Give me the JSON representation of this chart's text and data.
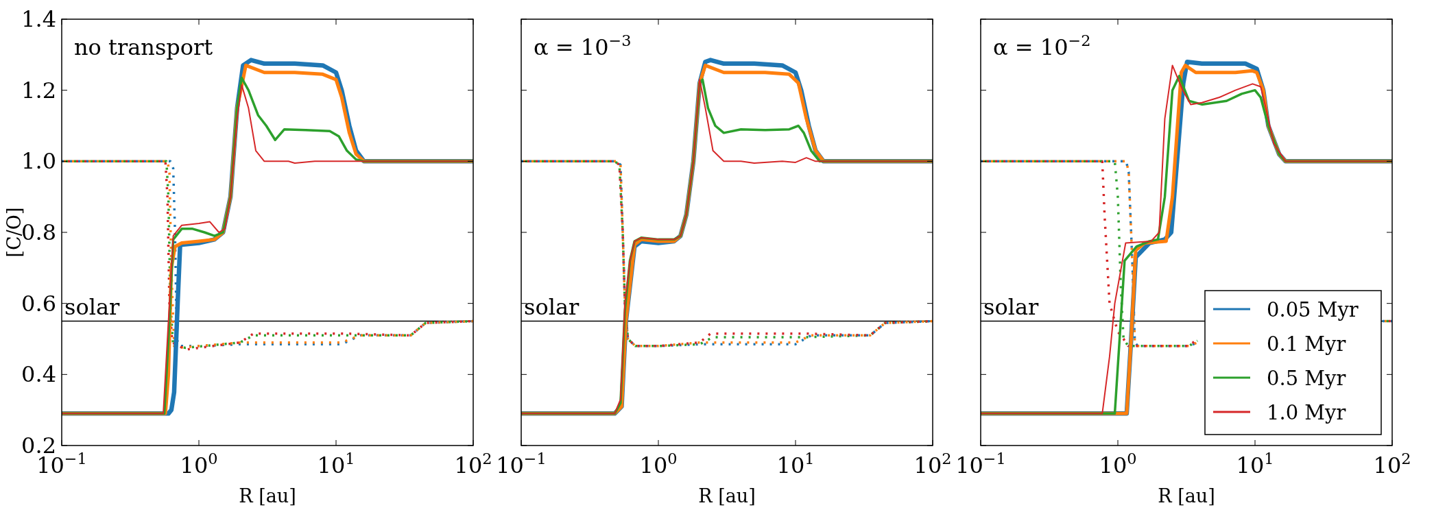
{
  "chart_data": [
    {
      "type": "line",
      "ylabel": "[C/O]",
      "xlabel": "R [au]",
      "annotations": [
        "no transport"
      ],
      "log": "x",
      "xlim": [
        0.1,
        100
      ],
      "ylim": [
        0.2,
        1.4
      ],
      "xticks": [
        {
          "value": 0.1,
          "label": "10$^{−1}$"
        },
        {
          "value": 1,
          "label": "10$^{0}$"
        },
        {
          "value": 10,
          "label": "10$^{1}$"
        },
        {
          "value": 100,
          "label": "10$^{2}$"
        }
      ],
      "yticks": [
        0.2,
        0.4,
        0.6,
        0.8,
        {
          "value": 1,
          "label": "1.0"
        },
        1.2,
        1.4
      ],
      "ref_lines": [
        {
          "axis": "y",
          "value": 0.55,
          "label": "solar",
          "color": "#000000"
        }
      ],
      "series": [
        {
          "color": "#1f77b4",
          "x": [
            0.1,
            0.62,
            0.65,
            0.67,
            0.69,
            0.72,
            1,
            2,
            5,
            11,
            15,
            35,
            45,
            100
          ],
          "values": [
            1.0,
            1.0,
            0.98,
            0.8,
            0.5,
            0.48,
            0.48,
            0.485,
            0.485,
            0.485,
            0.51,
            0.51,
            0.545,
            0.55
          ],
          "line_style": "dotted"
        },
        {
          "color": "#ff7f0e",
          "x": [
            0.1,
            0.59,
            0.61,
            0.63,
            0.66,
            0.7,
            1,
            2,
            5,
            11,
            15,
            35,
            45,
            100
          ],
          "values": [
            1.0,
            1.0,
            0.97,
            0.7,
            0.48,
            0.475,
            0.48,
            0.49,
            0.49,
            0.49,
            0.51,
            0.51,
            0.545,
            0.55
          ],
          "line_style": "dotted"
        },
        {
          "color": "#2ca02c",
          "x": [
            0.1,
            0.58,
            0.6,
            0.62,
            0.65,
            0.8,
            2,
            2.5,
            5,
            15,
            35,
            45,
            100
          ],
          "values": [
            1.0,
            1.0,
            0.9,
            0.6,
            0.48,
            0.475,
            0.49,
            0.51,
            0.51,
            0.51,
            0.51,
            0.545,
            0.55
          ],
          "line_style": "dotted"
        },
        {
          "color": "#d62728",
          "x": [
            0.1,
            0.57,
            0.59,
            0.61,
            0.64,
            0.8,
            2,
            2.5,
            5,
            12,
            35,
            45,
            100
          ],
          "values": [
            1.0,
            1.0,
            0.9,
            0.6,
            0.49,
            0.47,
            0.49,
            0.515,
            0.515,
            0.515,
            0.51,
            0.545,
            0.55
          ],
          "line_style": "dotted"
        },
        {
          "color": "#1f77b4",
          "x": [
            0.1,
            0.6,
            0.63,
            0.66,
            0.7,
            0.73,
            1,
            1.3,
            1.5,
            1.7,
            1.9,
            2.1,
            2.4,
            3,
            5,
            8,
            10,
            11,
            12.5,
            14,
            16,
            100
          ],
          "values": [
            0.29,
            0.29,
            0.3,
            0.35,
            0.6,
            0.765,
            0.77,
            0.78,
            0.8,
            0.9,
            1.15,
            1.27,
            1.285,
            1.275,
            1.275,
            1.27,
            1.25,
            1.2,
            1.1,
            1.03,
            1.0,
            1.0
          ]
        },
        {
          "color": "#ff7f0e",
          "x": [
            0.1,
            0.57,
            0.6,
            0.63,
            0.67,
            0.75,
            1,
            1.3,
            1.5,
            1.7,
            1.9,
            2.2,
            3,
            5,
            8,
            10,
            11,
            12.5,
            14,
            16,
            100
          ],
          "values": [
            0.29,
            0.29,
            0.4,
            0.7,
            0.76,
            0.77,
            0.775,
            0.78,
            0.8,
            0.9,
            1.15,
            1.27,
            1.25,
            1.25,
            1.245,
            1.23,
            1.18,
            1.08,
            1.02,
            1.0,
            1.0
          ]
        },
        {
          "color": "#2ca02c",
          "x": [
            0.1,
            0.56,
            0.6,
            0.65,
            0.75,
            0.9,
            1.1,
            1.3,
            1.5,
            1.7,
            1.9,
            2.05,
            2.3,
            2.7,
            3.1,
            3.6,
            4.2,
            6,
            9,
            10.5,
            12,
            14,
            16,
            100
          ],
          "values": [
            0.29,
            0.29,
            0.5,
            0.78,
            0.81,
            0.81,
            0.8,
            0.79,
            0.8,
            0.9,
            1.15,
            1.235,
            1.2,
            1.13,
            1.1,
            1.06,
            1.09,
            1.088,
            1.085,
            1.07,
            1.03,
            1.005,
            1.0,
            1.0
          ]
        },
        {
          "color": "#d62728",
          "x": [
            0.1,
            0.55,
            0.6,
            0.65,
            0.75,
            1,
            1.2,
            1.4,
            1.55,
            1.7,
            1.9,
            2.05,
            2.3,
            2.6,
            3,
            4.5,
            5,
            7,
            12,
            100
          ],
          "values": [
            0.29,
            0.29,
            0.55,
            0.79,
            0.82,
            0.825,
            0.83,
            0.8,
            0.81,
            0.9,
            1.12,
            1.215,
            1.15,
            1.03,
            1.0,
            1.0,
            0.995,
            1.0,
            1.0,
            1.0
          ]
        }
      ]
    },
    {
      "type": "line",
      "xlabel": "R [au]",
      "annotations": [
        "α = 10$^{−3}$"
      ],
      "log": "x",
      "xlim": [
        0.1,
        100
      ],
      "ylim": [
        0.2,
        1.4
      ],
      "tick_labels": "x",
      "xticks": [
        {
          "value": 0.1,
          "label": "10$^{−1}$"
        },
        {
          "value": 1,
          "label": "10$^{0}$"
        },
        {
          "value": 10,
          "label": "10$^{1}$"
        },
        {
          "value": 100,
          "label": "10$^{2}$"
        }
      ],
      "yticks": [
        0.2,
        0.4,
        0.6,
        0.8,
        1,
        1.2,
        1.4
      ],
      "ref_lines": [
        {
          "axis": "y",
          "value": 0.55,
          "label": "solar",
          "color": "#000000"
        }
      ],
      "series": [
        {
          "color": "#1f77b4",
          "x": [
            0.1,
            0.49,
            0.53,
            0.55,
            0.57,
            0.6,
            0.68,
            1,
            2,
            10,
            13,
            35,
            45,
            100
          ],
          "values": [
            1.0,
            1.0,
            0.99,
            0.8,
            0.6,
            0.5,
            0.48,
            0.48,
            0.485,
            0.485,
            0.51,
            0.51,
            0.545,
            0.55
          ],
          "line_style": "dotted"
        },
        {
          "color": "#ff7f0e",
          "x": [
            0.1,
            0.49,
            0.53,
            0.55,
            0.57,
            0.6,
            0.68,
            1,
            2,
            10,
            13,
            35,
            45,
            100
          ],
          "values": [
            1.0,
            1.0,
            0.99,
            0.8,
            0.6,
            0.5,
            0.48,
            0.48,
            0.49,
            0.49,
            0.51,
            0.51,
            0.545,
            0.55
          ],
          "line_style": "dotted"
        },
        {
          "color": "#2ca02c",
          "x": [
            0.1,
            0.48,
            0.52,
            0.55,
            0.57,
            0.6,
            0.68,
            1,
            2,
            2.5,
            12,
            35,
            45,
            100
          ],
          "values": [
            1.0,
            1.0,
            0.99,
            0.8,
            0.6,
            0.5,
            0.48,
            0.48,
            0.485,
            0.505,
            0.505,
            0.51,
            0.545,
            0.55
          ],
          "line_style": "dotted"
        },
        {
          "color": "#d62728",
          "x": [
            0.1,
            0.48,
            0.52,
            0.55,
            0.57,
            0.6,
            0.68,
            1,
            2,
            2.4,
            12,
            35,
            45,
            100
          ],
          "values": [
            1.0,
            1.0,
            0.99,
            0.8,
            0.6,
            0.5,
            0.48,
            0.48,
            0.49,
            0.515,
            0.515,
            0.51,
            0.545,
            0.55
          ],
          "line_style": "dotted"
        },
        {
          "color": "#1f77b4",
          "x": [
            0.1,
            0.48,
            0.54,
            0.58,
            0.67,
            0.75,
            1,
            1.3,
            1.45,
            1.6,
            1.8,
            2,
            2.2,
            2.4,
            3,
            5,
            8,
            10,
            11,
            12.5,
            14,
            16,
            100
          ],
          "values": [
            0.29,
            0.29,
            0.31,
            0.55,
            0.76,
            0.775,
            0.77,
            0.775,
            0.79,
            0.85,
            1.0,
            1.22,
            1.28,
            1.285,
            1.275,
            1.275,
            1.27,
            1.25,
            1.2,
            1.1,
            1.03,
            1.0,
            1.0
          ]
        },
        {
          "color": "#ff7f0e",
          "x": [
            0.1,
            0.48,
            0.54,
            0.58,
            0.67,
            0.75,
            1,
            1.3,
            1.45,
            1.6,
            1.8,
            2,
            2.2,
            3,
            6,
            9,
            10.5,
            12,
            14,
            16,
            100
          ],
          "values": [
            0.29,
            0.29,
            0.31,
            0.55,
            0.765,
            0.78,
            0.775,
            0.775,
            0.79,
            0.85,
            1.0,
            1.22,
            1.27,
            1.25,
            1.25,
            1.245,
            1.22,
            1.12,
            1.03,
            1.0,
            1.0
          ]
        },
        {
          "color": "#2ca02c",
          "x": [
            0.1,
            0.48,
            0.53,
            0.57,
            0.62,
            0.67,
            0.75,
            1,
            1.3,
            1.45,
            1.6,
            1.8,
            2,
            2.1,
            2.3,
            2.6,
            3,
            4,
            6,
            9,
            10.5,
            11.5,
            13,
            15,
            100
          ],
          "values": [
            0.29,
            0.29,
            0.32,
            0.58,
            0.72,
            0.775,
            0.785,
            0.78,
            0.78,
            0.79,
            0.85,
            1.0,
            1.22,
            1.23,
            1.15,
            1.1,
            1.08,
            1.09,
            1.088,
            1.09,
            1.1,
            1.08,
            1.03,
            1.0,
            1.0
          ]
        },
        {
          "color": "#d62728",
          "x": [
            0.1,
            0.48,
            0.53,
            0.57,
            0.62,
            0.67,
            0.75,
            1,
            1.3,
            1.45,
            1.6,
            1.8,
            2,
            2.2,
            2.5,
            3,
            4,
            5,
            8,
            10,
            12,
            14,
            100
          ],
          "values": [
            0.29,
            0.29,
            0.33,
            0.6,
            0.72,
            0.775,
            0.785,
            0.78,
            0.78,
            0.79,
            0.85,
            1.0,
            1.23,
            1.15,
            1.03,
            1.0,
            1.0,
            0.995,
            1.0,
            0.997,
            1.01,
            1.0,
            1.0
          ]
        }
      ]
    },
    {
      "type": "line",
      "xlabel": "R [au]",
      "annotations": [
        "α = 10$^{−2}$"
      ],
      "log": "x",
      "xlim": [
        0.1,
        100
      ],
      "ylim": [
        0.2,
        1.4
      ],
      "tick_labels": "x",
      "legend": "bottom right",
      "xticks": [
        {
          "value": 0.1,
          "label": "10$^{−1}$"
        },
        {
          "value": 1,
          "label": "10$^{0}$"
        },
        {
          "value": 10,
          "label": "10$^{1}$"
        },
        {
          "value": 100,
          "label": "10$^{2}$"
        }
      ],
      "yticks": [
        0.2,
        0.4,
        0.6,
        0.8,
        1,
        1.2,
        1.4
      ],
      "ref_lines": [
        {
          "axis": "y",
          "value": 0.55,
          "label": "solar",
          "color": "#000000"
        }
      ],
      "series": [
        {
          "color": "#1f77b4",
          "x": [
            0.1,
            1.15,
            1.2,
            1.28,
            1.33,
            1.4,
            2,
            3.3,
            3.8,
            4,
            85,
            100
          ],
          "values": [
            1.0,
            1.0,
            0.97,
            0.7,
            0.49,
            0.48,
            0.48,
            0.48,
            0.49,
            null,
            0.55,
            0.55
          ],
          "line_style": "dotted"
        },
        {
          "color": "#ff7f0e",
          "x": [
            0.1,
            1.15,
            1.2,
            1.28,
            1.33,
            1.4,
            2,
            3.3,
            3.8,
            4,
            85,
            100
          ],
          "values": [
            1.0,
            1.0,
            0.97,
            0.7,
            0.49,
            0.48,
            0.48,
            0.48,
            0.49,
            null,
            0.55,
            0.55
          ],
          "line_style": "dotted"
        },
        {
          "color": "#2ca02c",
          "x": [
            0.1,
            0.95,
            1.0,
            1.05,
            1.1,
            1.19,
            2,
            3.3,
            3.8,
            4,
            85,
            100
          ],
          "values": [
            1.0,
            1.0,
            0.9,
            0.65,
            0.5,
            0.48,
            0.48,
            0.48,
            0.495,
            null,
            0.55,
            0.55
          ],
          "line_style": "dotted"
        },
        {
          "color": "#d62728",
          "x": [
            0.1,
            0.77,
            0.8,
            0.87,
            1.0,
            1.1,
            1.19,
            2,
            3.3,
            3.8,
            4,
            85,
            100
          ],
          "values": [
            1.0,
            1.0,
            0.85,
            0.6,
            0.52,
            0.5,
            0.48,
            0.48,
            0.48,
            0.5,
            null,
            0.55,
            0.55
          ],
          "line_style": "dotted"
        },
        {
          "name": "0.05 Myr",
          "color": "#1f77b4",
          "x": [
            0.1,
            1.16,
            1.25,
            1.35,
            1.7,
            2.2,
            2.45,
            2.7,
            3.0,
            3.2,
            4.1,
            8.5,
            10.3,
            11.5,
            12.5,
            15,
            16.7,
            100
          ],
          "values": [
            0.29,
            0.29,
            0.5,
            0.73,
            0.77,
            0.78,
            0.8,
            1.0,
            1.22,
            1.28,
            1.275,
            1.275,
            1.26,
            1.2,
            1.1,
            1.02,
            1.0,
            1.0
          ]
        },
        {
          "name": "0.1 Myr",
          "color": "#ff7f0e",
          "x": [
            0.1,
            1.16,
            1.25,
            1.35,
            1.57,
            2.25,
            2.5,
            2.9,
            3.1,
            3.7,
            7.2,
            9.5,
            10.3,
            11.5,
            12.5,
            15,
            16.7,
            100
          ],
          "values": [
            0.29,
            0.29,
            0.5,
            0.75,
            0.77,
            0.775,
            0.9,
            1.25,
            1.27,
            1.25,
            1.25,
            1.255,
            1.25,
            1.2,
            1.1,
            1.02,
            1.0,
            1.0
          ]
        },
        {
          "name": "0.5 Myr",
          "color": "#2ca02c",
          "x": [
            0.1,
            0.95,
            1.03,
            1.12,
            1.37,
            1.7,
            1.96,
            2.2,
            2.5,
            2.8,
            3.3,
            4.1,
            6.2,
            8,
            10,
            11,
            12.5,
            15,
            16.7,
            100
          ],
          "values": [
            0.29,
            0.29,
            0.5,
            0.72,
            0.76,
            0.775,
            0.78,
            0.9,
            1.2,
            1.24,
            1.17,
            1.16,
            1.17,
            1.19,
            1.2,
            1.18,
            1.1,
            1.02,
            1.0,
            1.0
          ]
        },
        {
          "name": "1.0 Myr",
          "color": "#d62728",
          "x": [
            0.1,
            0.77,
            0.87,
            0.95,
            1.14,
            1.75,
            2.0,
            2.2,
            2.5,
            2.97,
            3.4,
            4.1,
            5.5,
            7.2,
            9.6,
            11,
            12,
            13.7,
            16.7,
            100
          ],
          "values": [
            0.29,
            0.29,
            0.45,
            0.6,
            0.77,
            0.775,
            0.8,
            1.12,
            1.27,
            1.2,
            1.16,
            1.165,
            1.18,
            1.2,
            1.218,
            1.21,
            1.15,
            1.05,
            1.0,
            1.0
          ]
        }
      ]
    }
  ]
}
